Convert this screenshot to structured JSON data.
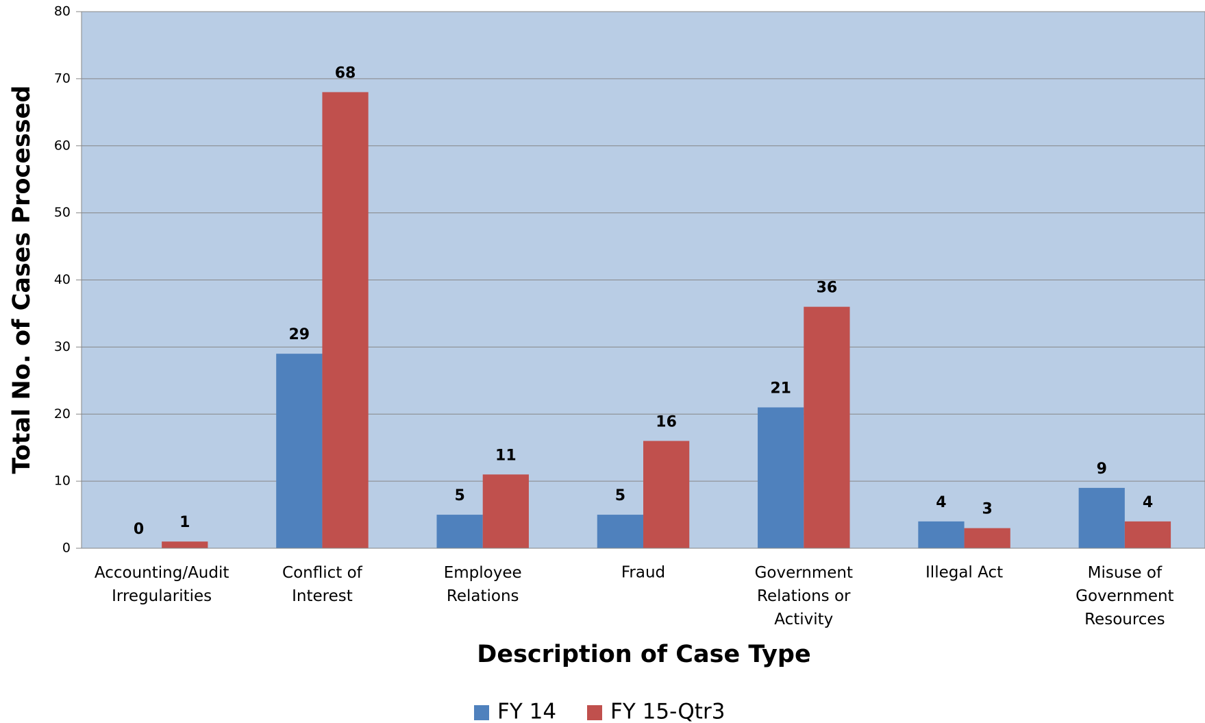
{
  "chart_data": {
    "type": "bar",
    "x_label": "Description of Case Type",
    "y_label": "Total No. of Cases Processed",
    "categories": [
      "Accounting/Audit\nIrregularities",
      "Conflict of\nInterest",
      "Employee\nRelations",
      "Fraud",
      "Government\nRelations or\nActivity",
      "Illegal Act",
      "Misuse of\nGovernment\nResources"
    ],
    "series": [
      {
        "name": "FY 14",
        "color": "#4f81bd",
        "values": [
          0,
          29,
          5,
          5,
          21,
          4,
          9
        ]
      },
      {
        "name": "FY 15-Qtr3",
        "color": "#c0504d",
        "values": [
          1,
          68,
          11,
          16,
          36,
          3,
          4
        ]
      }
    ],
    "ylim": [
      0,
      80
    ],
    "yticks": [
      0,
      10,
      20,
      30,
      40,
      50,
      60,
      70,
      80
    ],
    "grid": true,
    "legend": "bottom",
    "plot_background": "#b9cde5"
  }
}
